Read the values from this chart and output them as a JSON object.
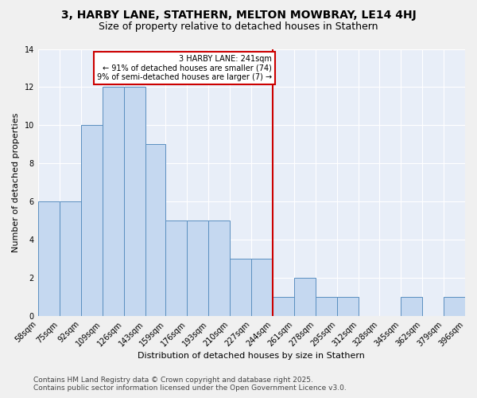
{
  "title": "3, HARBY LANE, STATHERN, MELTON MOWBRAY, LE14 4HJ",
  "subtitle": "Size of property relative to detached houses in Stathern",
  "xlabel": "Distribution of detached houses by size in Stathern",
  "ylabel": "Number of detached properties",
  "bar_values": [
    6,
    6,
    10,
    12,
    12,
    9,
    5,
    5,
    5,
    3,
    3,
    1,
    2,
    1,
    1,
    0,
    0,
    1,
    0,
    1
  ],
  "bin_edges": [
    58,
    75,
    92,
    109,
    126,
    143,
    159,
    176,
    193,
    210,
    227,
    244,
    261,
    278,
    295,
    312,
    328,
    345,
    362,
    379,
    396
  ],
  "x_tick_labels": [
    "58sqm",
    "75sqm",
    "92sqm",
    "109sqm",
    "126sqm",
    "143sqm",
    "159sqm",
    "176sqm",
    "193sqm",
    "210sqm",
    "227sqm",
    "244sqm",
    "261sqm",
    "278sqm",
    "295sqm",
    "312sqm",
    "328sqm",
    "345sqm",
    "362sqm",
    "379sqm",
    "396sqm"
  ],
  "bar_color": "#c5d8f0",
  "bar_edge_color": "#5a8fc0",
  "red_line_x": 244,
  "annotation_title": "3 HARBY LANE: 241sqm",
  "annotation_line1": "← 91% of detached houses are smaller (74)",
  "annotation_line2": "9% of semi-detached houses are larger (7) →",
  "annotation_box_color": "#ffffff",
  "annotation_box_edge": "#cc0000",
  "red_line_color": "#cc0000",
  "ylim": [
    0,
    14
  ],
  "yticks": [
    0,
    2,
    4,
    6,
    8,
    10,
    12,
    14
  ],
  "background_color": "#e8eef8",
  "fig_background_color": "#f0f0f0",
  "footer_line1": "Contains HM Land Registry data © Crown copyright and database right 2025.",
  "footer_line2": "Contains public sector information licensed under the Open Government Licence v3.0.",
  "title_fontsize": 10,
  "subtitle_fontsize": 9,
  "axis_label_fontsize": 8,
  "tick_fontsize": 7,
  "footer_fontsize": 6.5
}
